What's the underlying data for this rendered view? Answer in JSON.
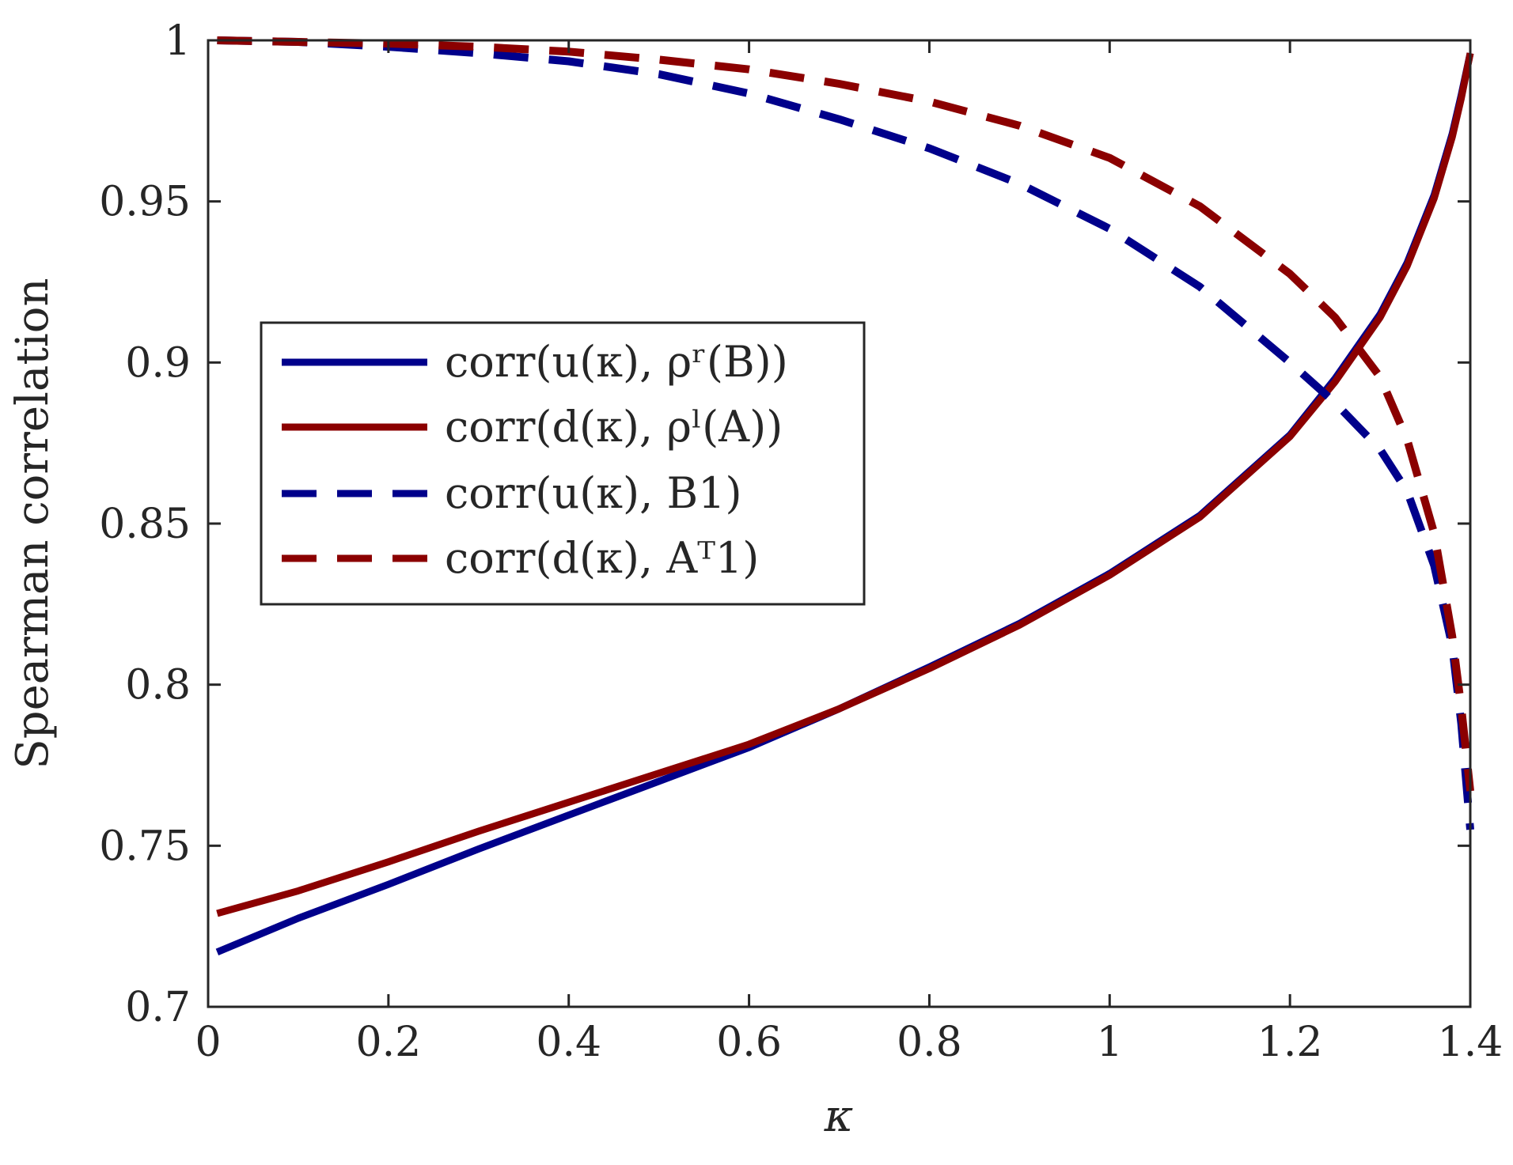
{
  "chart_data": {
    "type": "line",
    "xlabel": "κ",
    "ylabel": "Spearman correlation",
    "xlim": [
      0,
      1.4
    ],
    "ylim": [
      0.7,
      1.0
    ],
    "xticks": [
      0,
      0.2,
      0.4,
      0.6,
      0.8,
      1.0,
      1.2,
      1.4
    ],
    "xtick_labels": [
      "0",
      "0.2",
      "0.4",
      "0.6",
      "0.8",
      "1",
      "1.2",
      "1.4"
    ],
    "yticks": [
      0.7,
      0.75,
      0.8,
      0.85,
      0.9,
      0.95,
      1.0
    ],
    "ytick_labels": [
      "0.7",
      "0.75",
      "0.8",
      "0.85",
      "0.9",
      "0.95",
      "1"
    ],
    "grid": false,
    "legend_position": "center-left",
    "x": [
      0.01,
      0.1,
      0.2,
      0.3,
      0.4,
      0.5,
      0.6,
      0.7,
      0.8,
      0.9,
      1.0,
      1.1,
      1.2,
      1.25,
      1.3,
      1.33,
      1.36,
      1.38,
      1.39,
      1.4
    ],
    "series": [
      {
        "name": "corr(u(κ), ρʳ(B))",
        "color": "#00008B",
        "dash": "solid",
        "values": [
          0.717,
          0.7275,
          0.738,
          0.749,
          0.7595,
          0.77,
          0.7805,
          0.7925,
          0.8055,
          0.819,
          0.8345,
          0.8525,
          0.8775,
          0.895,
          0.915,
          0.931,
          0.952,
          0.971,
          0.983,
          0.996
        ]
      },
      {
        "name": "corr(d(κ), ρˡ(A))",
        "color": "#8B0000",
        "dash": "solid",
        "values": [
          0.729,
          0.736,
          0.745,
          0.7545,
          0.7635,
          0.7725,
          0.7815,
          0.7925,
          0.805,
          0.8185,
          0.834,
          0.852,
          0.877,
          0.894,
          0.914,
          0.93,
          0.951,
          0.97,
          0.982,
          0.996
        ]
      },
      {
        "name": "corr(u(κ), B1)",
        "color": "#00008B",
        "dash": "dashed",
        "values": [
          1.0,
          0.9995,
          0.998,
          0.996,
          0.9935,
          0.9895,
          0.9835,
          0.9755,
          0.9665,
          0.9555,
          0.9415,
          0.9235,
          0.9,
          0.8875,
          0.873,
          0.86,
          0.837,
          0.812,
          0.788,
          0.755
        ]
      },
      {
        "name": "corr(d(κ), Aᵀ1)",
        "color": "#8B0000",
        "dash": "dashed",
        "values": [
          1.0,
          0.9995,
          0.999,
          0.998,
          0.9965,
          0.994,
          0.991,
          0.9865,
          0.981,
          0.9735,
          0.9635,
          0.9485,
          0.9275,
          0.914,
          0.8955,
          0.876,
          0.847,
          0.815,
          0.793,
          0.767
        ]
      }
    ]
  }
}
